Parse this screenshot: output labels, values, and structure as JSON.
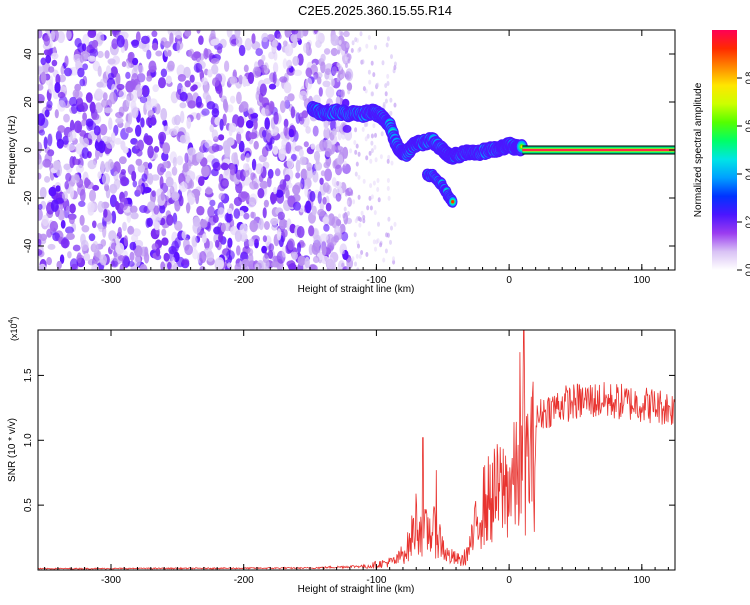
{
  "title": "C2E5.2025.360.15.55.R14",
  "chart_data": [
    {
      "type": "heatmap",
      "xlabel": "Height of straight line (km)",
      "ylabel": "Frequency (Hz)",
      "xlim": [
        -355,
        125
      ],
      "ylim": [
        -50,
        50
      ],
      "x_ticks": [
        -300,
        -200,
        -100,
        0,
        100
      ],
      "y_ticks": [
        -40,
        -20,
        0,
        20,
        40
      ],
      "colorbar": {
        "label": "Normalized spectral amplitude",
        "range": [
          0,
          1
        ],
        "ticks": [
          "0.0",
          "0.2",
          "0.4",
          "0.6",
          "0.8"
        ],
        "colors": [
          "#ffffff",
          "#d9c2f5",
          "#9a3cf0",
          "#4b16ff",
          "#0033ff",
          "#00a0ff",
          "#00e5e5",
          "#00ff66",
          "#55ff00",
          "#ccff00",
          "#ffe600",
          "#ff8800",
          "#ff2a00",
          "#ff0055"
        ]
      },
      "noise_region": [
        -355,
        -140
      ],
      "ridge": [
        {
          "x": -148,
          "y": 17
        },
        {
          "x": -140,
          "y": 15
        },
        {
          "x": -130,
          "y": 16
        },
        {
          "x": -120,
          "y": 15
        },
        {
          "x": -110,
          "y": 15
        },
        {
          "x": -102,
          "y": 16
        },
        {
          "x": -96,
          "y": 14
        },
        {
          "x": -90,
          "y": 10
        },
        {
          "x": -84,
          "y": 1
        },
        {
          "x": -78,
          "y": -2
        },
        {
          "x": -72,
          "y": 2
        },
        {
          "x": -66,
          "y": 3
        },
        {
          "x": -58,
          "y": 4
        },
        {
          "x": -50,
          "y": 0
        },
        {
          "x": -44,
          "y": -3
        },
        {
          "x": -38,
          "y": -2
        },
        {
          "x": -30,
          "y": -1
        },
        {
          "x": -22,
          "y": -1
        },
        {
          "x": -14,
          "y": 0
        },
        {
          "x": -6,
          "y": 1
        },
        {
          "x": 0,
          "y": 2
        },
        {
          "x": 6,
          "y": 1
        },
        {
          "x": 10,
          "y": 1
        }
      ],
      "branch": [
        {
          "x": -62,
          "y": -10
        },
        {
          "x": -56,
          "y": -11
        },
        {
          "x": -50,
          "y": -15
        },
        {
          "x": -46,
          "y": -19
        },
        {
          "x": -42,
          "y": -22
        }
      ],
      "tail": {
        "x_start": 10,
        "x_end": 125,
        "y": 0
      }
    },
    {
      "type": "line",
      "xlabel": "Height of straight line (km)",
      "ylabel": "SNR (10 * v/v)",
      "y_multiplier": "(x10",
      "y_multiplier_exp": "4",
      "xlim": [
        -355,
        125
      ],
      "ylim": [
        0,
        18500
      ],
      "x_ticks": [
        -300,
        -200,
        -100,
        0,
        100
      ],
      "y_ticks": [
        "0.5",
        "1.0",
        "1.5"
      ],
      "series": [
        {
          "color": "#e8332f",
          "envelope": [
            {
              "x": -355,
              "y": 100
            },
            {
              "x": -150,
              "y": 150
            },
            {
              "x": -110,
              "y": 300
            },
            {
              "x": -85,
              "y": 900
            },
            {
              "x": -75,
              "y": 2500
            },
            {
              "x": -70,
              "y": 5000
            },
            {
              "x": -65,
              "y": 3600
            },
            {
              "x": -58,
              "y": 4000
            },
            {
              "x": -52,
              "y": 3000
            },
            {
              "x": -47,
              "y": 1500
            },
            {
              "x": -42,
              "y": 1200
            },
            {
              "x": -36,
              "y": 900
            },
            {
              "x": -32,
              "y": 1500
            },
            {
              "x": -27,
              "y": 3200
            },
            {
              "x": -22,
              "y": 6000
            },
            {
              "x": -15,
              "y": 7000
            },
            {
              "x": -5,
              "y": 8000
            },
            {
              "x": 5,
              "y": 9000
            },
            {
              "x": 15,
              "y": 11000
            },
            {
              "x": 25,
              "y": 12500
            },
            {
              "x": 40,
              "y": 13200
            },
            {
              "x": 60,
              "y": 13500
            },
            {
              "x": 80,
              "y": 13400
            },
            {
              "x": 100,
              "y": 13200
            },
            {
              "x": 125,
              "y": 12800
            }
          ],
          "spikes": [
            {
              "x": -65,
              "y": 10200
            },
            {
              "x": -55,
              "y": 7700
            },
            {
              "x": 8,
              "y": 16800
            },
            {
              "x": 11,
              "y": 18500
            }
          ]
        }
      ]
    }
  ]
}
